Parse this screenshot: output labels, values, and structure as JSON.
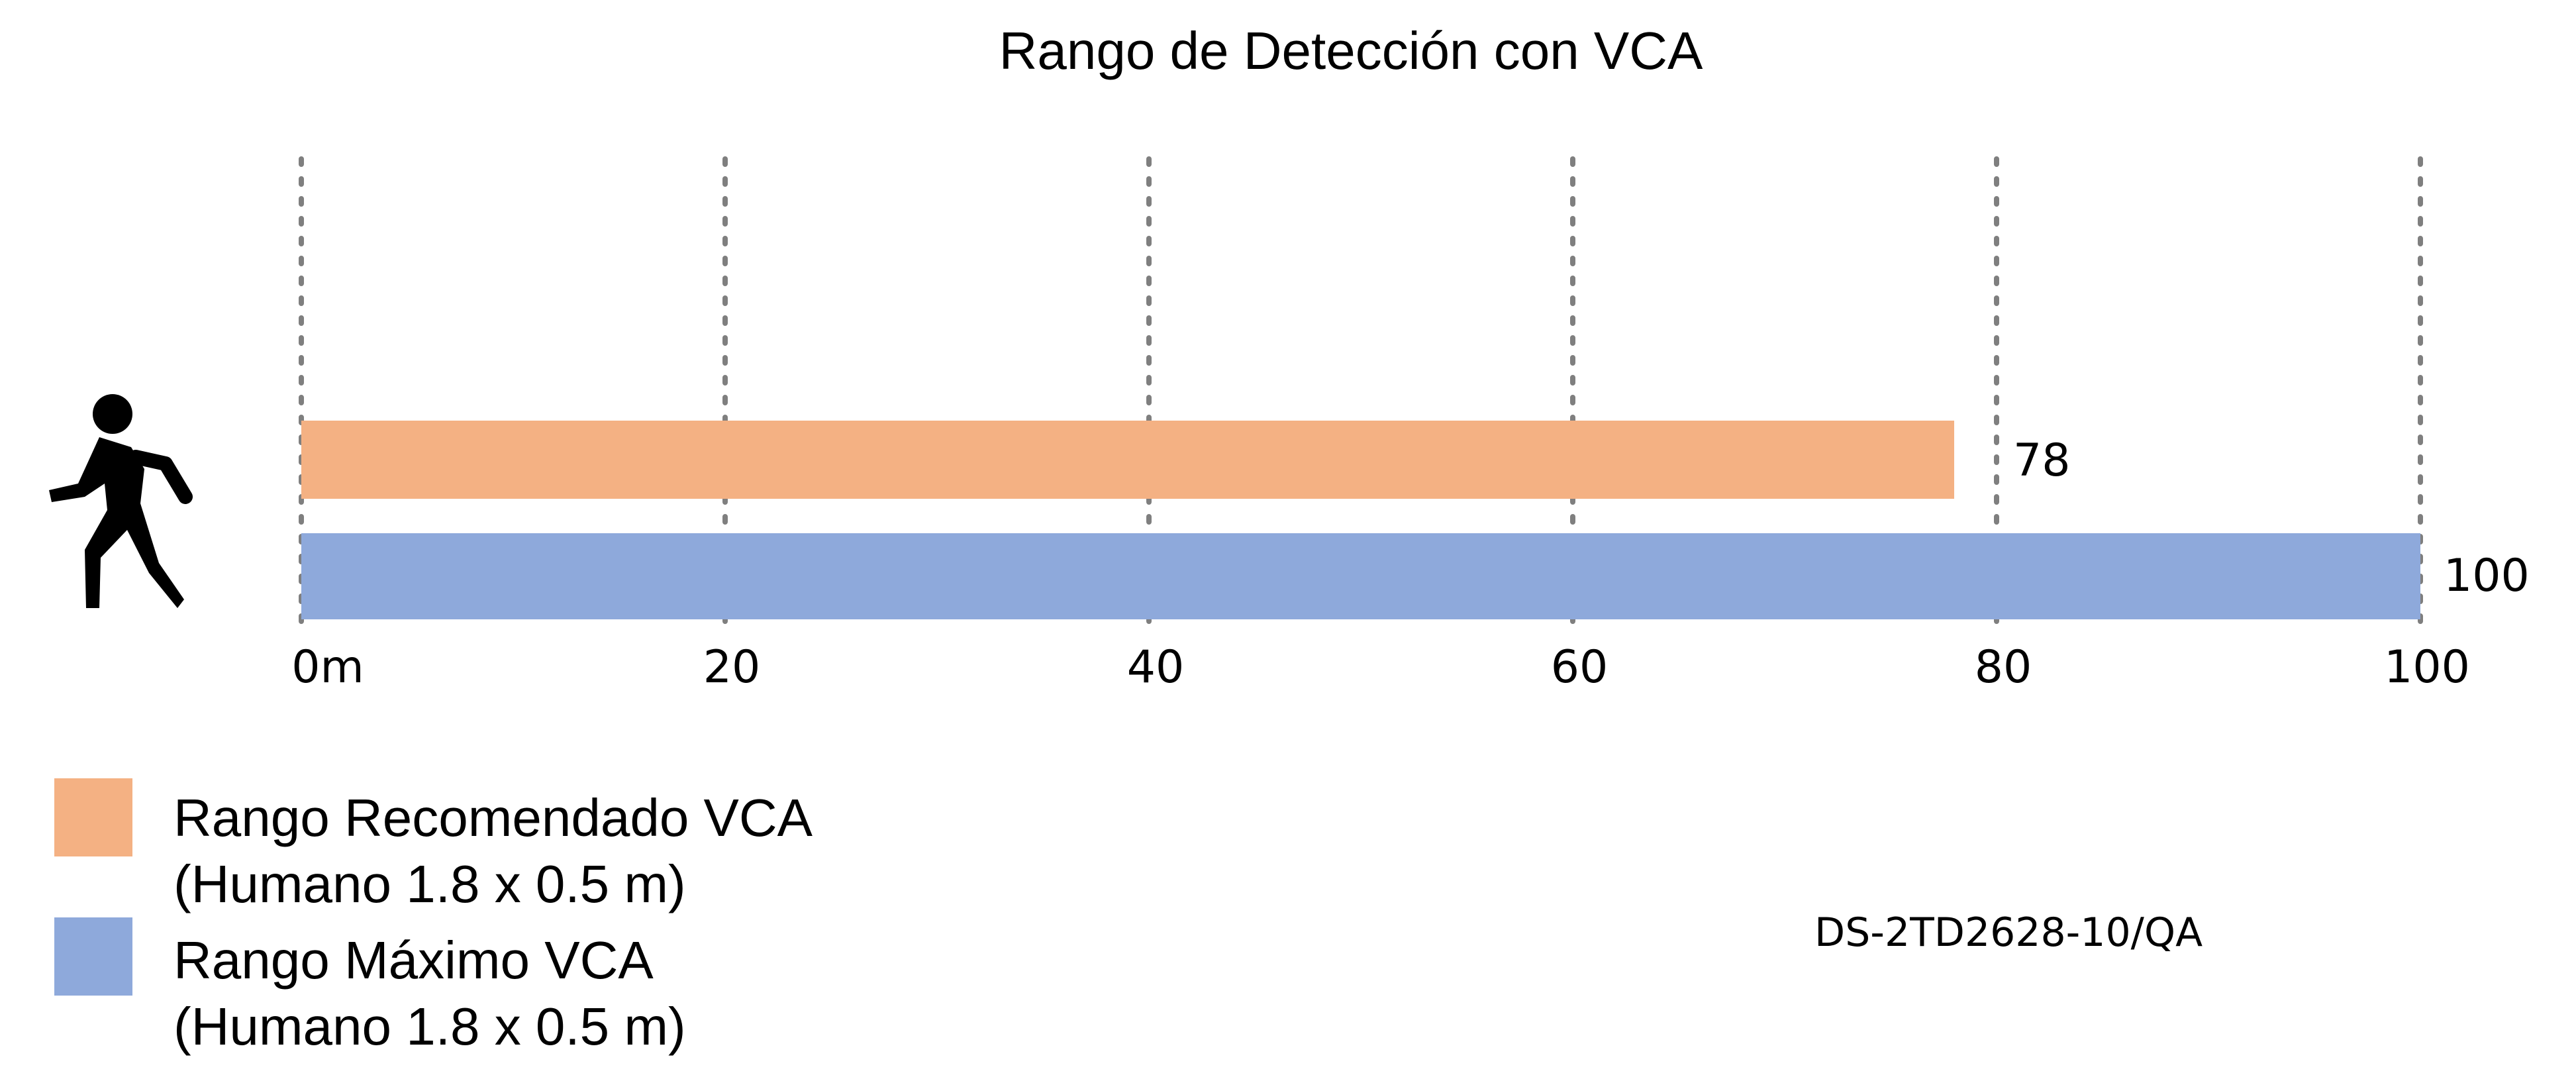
{
  "chart_data": {
    "type": "bar",
    "orientation": "horizontal",
    "title": "Rango de Detección con VCA",
    "xlabel": "",
    "ylabel": "",
    "xlim": [
      0,
      100
    ],
    "x_ticks": [
      {
        "value": 0,
        "label": "0m"
      },
      {
        "value": 20,
        "label": "20"
      },
      {
        "value": 40,
        "label": "40"
      },
      {
        "value": 60,
        "label": "60"
      },
      {
        "value": 80,
        "label": "80"
      },
      {
        "value": 100,
        "label": "100"
      }
    ],
    "grid": "vertical dotted",
    "legend_position": "bottom-left",
    "series": [
      {
        "name": "Rango Recomendado VCA (Humano 1.8 x 0.5 m)",
        "legend_lines": [
          "Rango Recomendado VCA",
          "(Humano 1.8 x 0.5 m)"
        ],
        "value": 78,
        "value_label": "78",
        "color": "#F4B183"
      },
      {
        "name": "Rango Máximo VCA (Humano 1.8 x 0.5 m)",
        "legend_lines": [
          "Rango Máximo VCA",
          "(Humano 1.8 x 0.5 m)"
        ],
        "value": 100,
        "value_label": "100",
        "color": "#8EA9DB"
      }
    ],
    "annotations": {
      "model": "DS-2TD2628-10/QA",
      "icon": "walking-person-icon"
    },
    "colors": {
      "gridline": "#7F7F7F",
      "text": "#000000"
    }
  }
}
